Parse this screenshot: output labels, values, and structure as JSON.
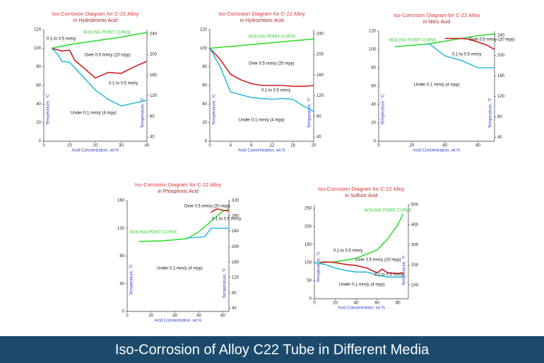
{
  "caption": "Iso-Corrosion of Alloy C22 Tube in Different Media",
  "chart_data": [
    {
      "type": "line",
      "title": "Iso-Corrosion Diagram for C-22 Alloy",
      "subtitle": "in Hydrobromic Acid",
      "xlabel": "Acid Concentration, wt.%",
      "ylabel": "Temperature, °C",
      "y2label": "Temperature, °F",
      "xlim": [
        0,
        40
      ],
      "xticks": [
        0,
        10,
        20,
        30,
        40
      ],
      "ylim": [
        0,
        120
      ],
      "yticks": [
        0,
        20,
        40,
        60,
        80,
        100,
        120
      ],
      "y2lim": [
        32,
        248
      ],
      "y2ticks": [
        40,
        80,
        120,
        160,
        200,
        240
      ],
      "series": [
        {
          "name": "BOILING POINT CURVE",
          "color": "#33dd33",
          "x": [
            3,
            10,
            20,
            30,
            40
          ],
          "values": [
            100,
            104,
            108,
            112,
            117
          ]
        },
        {
          "color": "#cc2222",
          "x": [
            3,
            7,
            10,
            12,
            15,
            20,
            25,
            30,
            35,
            40
          ],
          "values": [
            100,
            97,
            98,
            87,
            80,
            68,
            74,
            73,
            80,
            86
          ]
        },
        {
          "color": "#33bbdd",
          "x": [
            3,
            5,
            7,
            10,
            15,
            20,
            25,
            30,
            35,
            40
          ],
          "values": [
            100,
            95,
            86,
            85,
            70,
            55,
            45,
            38,
            41,
            44
          ]
        }
      ],
      "annotations": [
        "0.1 to 0.5 mm/y",
        "Over 0.5 mm/y (20 mpy)",
        "0.1 to 0.5 mm/y",
        "Under 0.1 mm/y (4 mpy)"
      ]
    },
    {
      "type": "line",
      "title": "Iso-Corrosion Diagram for C-22 Alloy",
      "subtitle": "in Hydrochloric Acid",
      "xlabel": "Acid Concentration, wt.%",
      "ylabel": "Temperature, °C",
      "y2label": "Temperature, °F",
      "xlim": [
        0,
        20
      ],
      "xticks": [
        0,
        4,
        8,
        12,
        16,
        20
      ],
      "ylim": [
        0,
        120
      ],
      "yticks": [
        0,
        20,
        40,
        60,
        80,
        100,
        120
      ],
      "y2lim": [
        32,
        248
      ],
      "y2ticks": [
        40,
        80,
        120,
        160,
        200,
        240
      ],
      "series": [
        {
          "name": "BOILING POINT CURVE",
          "color": "#33dd33",
          "x": [
            0,
            5,
            10,
            15,
            20
          ],
          "values": [
            100,
            102.5,
            105,
            107.5,
            110
          ]
        },
        {
          "color": "#cc2222",
          "x": [
            0,
            2,
            4,
            6,
            8,
            10,
            12,
            14,
            16,
            18,
            20
          ],
          "values": [
            100,
            88,
            72,
            66,
            62,
            60,
            60,
            60,
            59,
            59,
            60
          ]
        },
        {
          "color": "#33bbdd",
          "x": [
            0,
            2,
            4,
            6,
            8,
            10,
            12,
            14,
            16,
            18,
            20
          ],
          "values": [
            100,
            80,
            53,
            50,
            47,
            46,
            45,
            46,
            45,
            38,
            32
          ]
        }
      ],
      "annotations": [
        "Over 0.5 mm/y (20 mpy)",
        "0.1 to 0.5 mm/y",
        "Under 0.1 mm/y (4 mpy)"
      ]
    },
    {
      "type": "line",
      "title": "Iso-Corrosion Diagram for C-22 Alloy",
      "subtitle": "in Nitric Acid",
      "xlabel": "Acid Concentration, wt.%",
      "ylabel": "Temperature, °C",
      "y2label": "Temperature, °F",
      "xlim": [
        0,
        70
      ],
      "xticks": [
        0,
        20,
        40,
        60
      ],
      "ylim": [
        0,
        120
      ],
      "yticks": [
        0,
        20,
        40,
        60,
        80,
        100,
        120
      ],
      "y2lim": [
        32,
        248
      ],
      "y2ticks": [
        40,
        80,
        120,
        160,
        200,
        240
      ],
      "series": [
        {
          "name": "BOILING POINT CURVE",
          "color": "#33dd33",
          "x": [
            10,
            30,
            50,
            60,
            70
          ],
          "values": [
            103,
            106,
            112,
            115,
            117
          ]
        },
        {
          "color": "#cc2222",
          "x": [
            40,
            50,
            55,
            60,
            65,
            70
          ],
          "values": [
            112,
            112,
            111,
            108,
            105,
            100
          ]
        },
        {
          "color": "#33bbdd",
          "x": [
            30,
            35,
            40,
            50,
            60,
            70
          ],
          "values": [
            107,
            100,
            93,
            88,
            80,
            80
          ]
        }
      ],
      "annotations": [
        "Over 0.5 mm/y (20 mpy)",
        "0.1 to 0.5 mm/y",
        "Under 0.1 mm/y (4 mpy)"
      ]
    },
    {
      "type": "line",
      "title": "Iso-Corrosion Diagram for C-22 Alloy",
      "subtitle": "in Phosphoric Acid",
      "xlabel": "Acid Concentration, wt.%",
      "ylabel": "Temperature, °C",
      "y2label": "Temperature, °F",
      "xlim": [
        0,
        85
      ],
      "xticks": [
        0,
        20,
        40,
        60,
        80
      ],
      "ylim": [
        0,
        160
      ],
      "yticks": [
        0,
        40,
        80,
        120,
        160
      ],
      "y2lim": [
        32,
        320
      ],
      "y2ticks": [
        40,
        80,
        120,
        160,
        200,
        240,
        280,
        320
      ],
      "series": [
        {
          "name": "BOILING POINT CURVE",
          "color": "#33dd33",
          "x": [
            10,
            30,
            50,
            60,
            70,
            80,
            85
          ],
          "values": [
            101,
            102,
            105,
            115,
            130,
            145,
            147
          ]
        },
        {
          "color": "#cc2222",
          "x": [
            70,
            75,
            80,
            85
          ],
          "values": [
            143,
            148,
            146,
            145
          ]
        },
        {
          "color": "#33bbdd",
          "x": [
            50,
            60,
            65,
            70,
            85
          ],
          "values": [
            106,
            107,
            108,
            120,
            120
          ]
        }
      ],
      "annotations": [
        "Over 0.5 mm/y (20 mpy)",
        "0.1 to 0.5 mm/y",
        "Under 0.1 mm/y (4 mpy)"
      ]
    },
    {
      "type": "line",
      "title": "Iso-Corrosion Diagram for C-22 Alloy",
      "subtitle": "in Sulfuric Acid",
      "xlabel": "Acid Concentration, wt.%",
      "ylabel": "Temperature, °C",
      "y2label": "Temperature, °F",
      "xlim": [
        0,
        90
      ],
      "xticks": [
        0,
        20,
        40,
        60,
        80
      ],
      "ylim": [
        0,
        260
      ],
      "yticks": [
        0,
        50,
        100,
        150,
        200,
        250
      ],
      "y2lim": [
        32,
        500
      ],
      "y2ticks": [
        100,
        200,
        300,
        400,
        500
      ],
      "series": [
        {
          "name": "BOILING POINT CURVE",
          "color": "#33dd33",
          "x": [
            5,
            20,
            40,
            60,
            70,
            80,
            85
          ],
          "values": [
            100,
            102,
            112,
            135,
            165,
            205,
            235
          ]
        },
        {
          "color": "#cc2222",
          "x": [
            5,
            10,
            20,
            30,
            40,
            50,
            60,
            65,
            70,
            80,
            85
          ],
          "values": [
            100,
            102,
            100,
            95,
            92,
            85,
            72,
            82,
            72,
            70,
            72
          ]
        },
        {
          "color": "#33bbdd",
          "x": [
            0,
            10,
            20,
            30,
            40,
            50,
            55,
            60,
            65,
            70,
            85
          ],
          "values": [
            100,
            95,
            85,
            78,
            74,
            74,
            70,
            65,
            63,
            60,
            60
          ]
        }
      ],
      "annotations": [
        "0.1 to 0.5 mm/y",
        "Over 0.5 mm/y (20 mpy)",
        "0.1 to 0.5 mm/y",
        "Under 0.1 mm/y (4 mpy)"
      ]
    }
  ]
}
